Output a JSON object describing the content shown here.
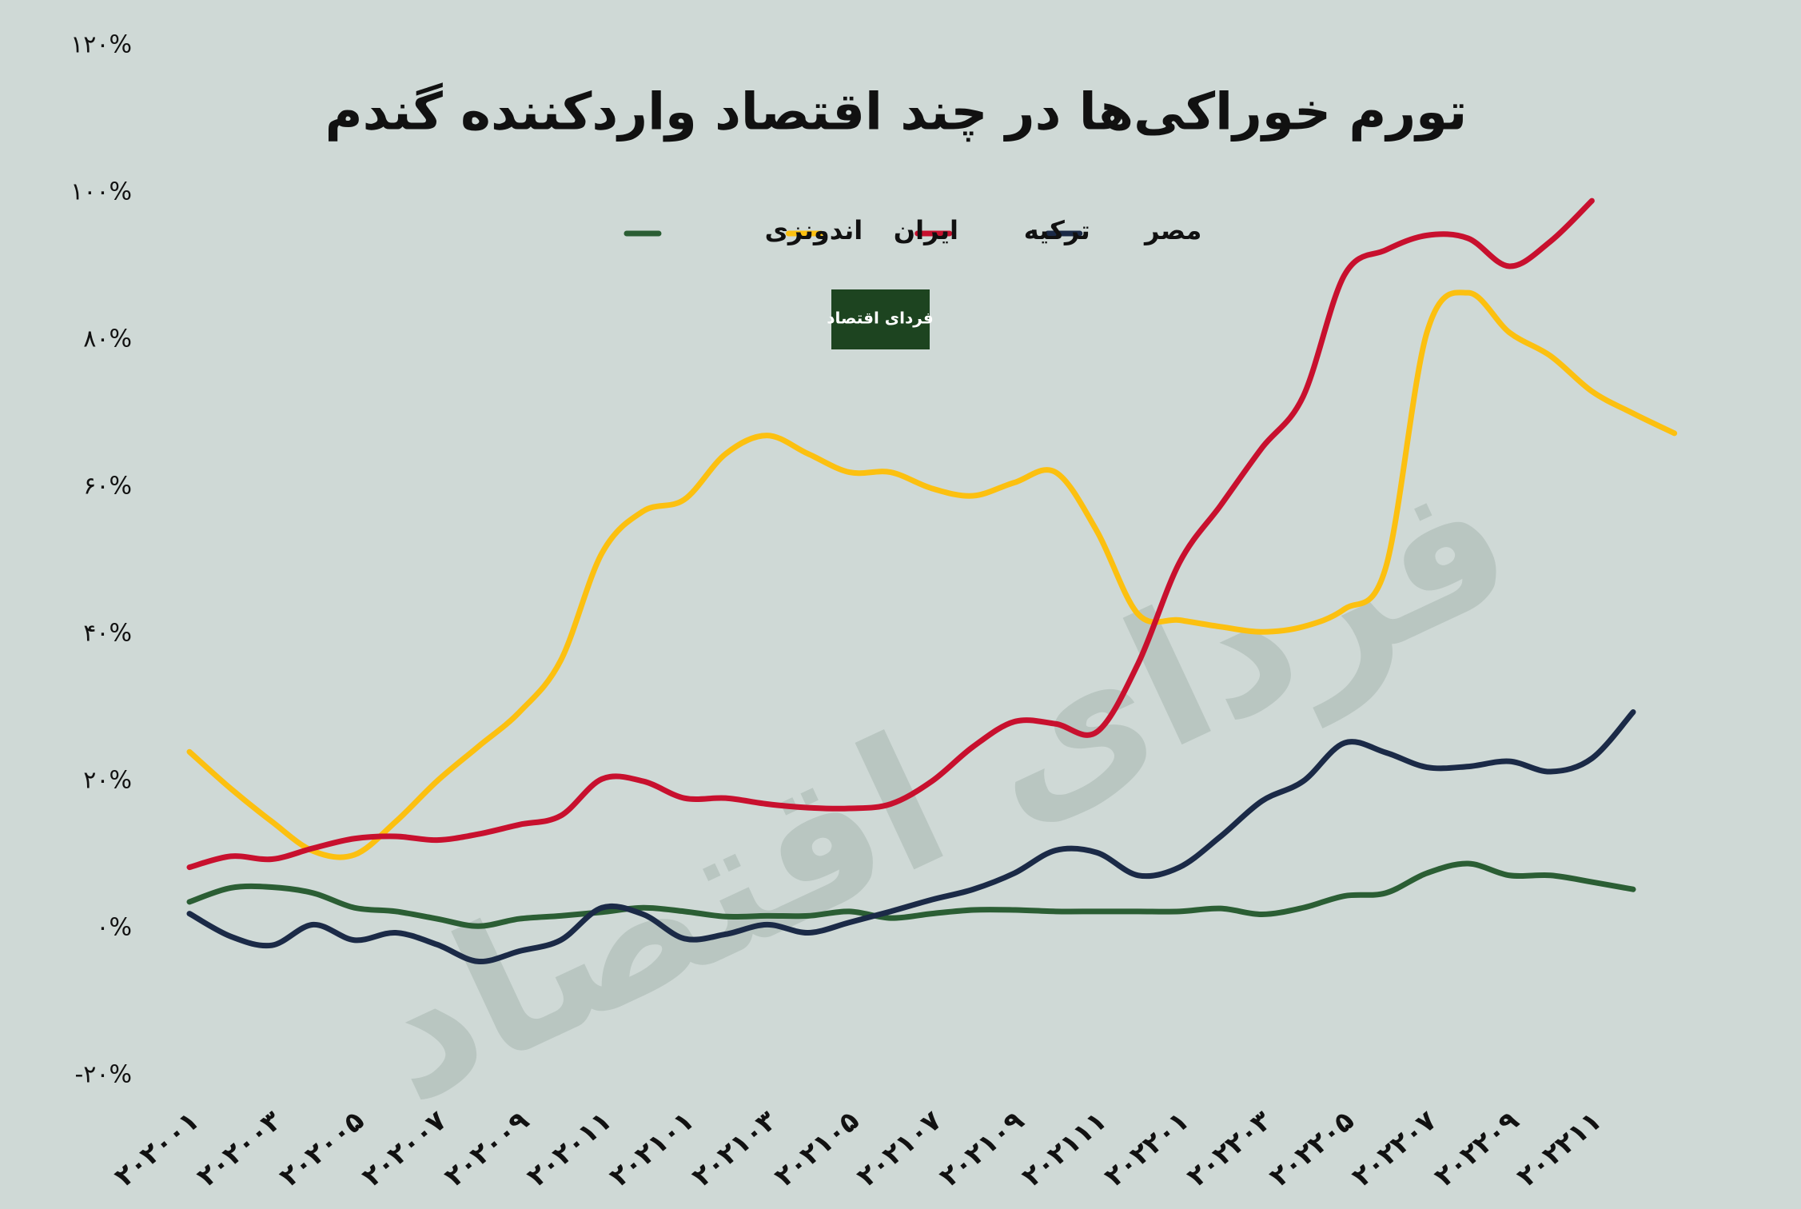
{
  "chart_data": {
    "type": "line",
    "title": "تورم خوراکی‌ها در چند اقتصاد واردکننده گندم",
    "logo_text": "فردای اقتصاد",
    "categories": [
      "۲۰۲۰۰۱",
      null,
      "۲۰۲۰۰۳",
      null,
      "۲۰۲۰۰۵",
      null,
      "۲۰۲۰۰۷",
      null,
      "۲۰۲۰۰۹",
      null,
      "۲۰۲۰۱۱",
      null,
      "۲۰۲۱۰۱",
      null,
      "۲۰۲۱۰۳",
      null,
      "۲۰۲۱۰۵",
      null,
      "۲۰۲۱۰۷",
      null,
      "۲۰۲۱۰۹",
      null,
      "۲۰۲۱۱۱",
      null,
      "۲۰۲۲۰۱",
      null,
      "۲۰۲۲۰۳",
      null,
      "۲۰۲۲۰۵",
      null,
      "۲۰۲۲۰۷",
      null,
      "۲۰۲۲۰۹",
      null,
      "۲۰۲۲۱۱",
      null,
      null
    ],
    "series": [
      {
        "name": "مصر",
        "color": "#1b2a47",
        "values": [
          2,
          -1.1,
          -2.3,
          0.5,
          -1.6,
          -0.6,
          -2.2,
          -4.5,
          -3.1,
          -1.6,
          2.8,
          1.9,
          -1.4,
          -0.8,
          0.5,
          -0.6,
          0.8,
          2.3,
          3.9,
          5.3,
          7.5,
          10.6,
          10.3,
          7.2,
          8.3,
          12.5,
          17.3,
          20,
          25.2,
          23.9,
          21.9,
          22,
          22.7,
          21.3,
          23.1,
          29.4,
          null
        ]
      },
      {
        "name": "ترکیه",
        "color": "#c8102e",
        "values": [
          8.3,
          9.8,
          9.4,
          10.9,
          12.2,
          12.5,
          12,
          12.8,
          14.1,
          15.3,
          20.3,
          20,
          17.7,
          17.7,
          16.9,
          16.4,
          16.3,
          16.9,
          20,
          24.7,
          28.1,
          27.8,
          26.7,
          36,
          49.7,
          57.5,
          65.3,
          72.3,
          88.8,
          92.2,
          94.2,
          93.8,
          90,
          93.4,
          98.9,
          null,
          null
        ]
      },
      {
        "name": "ایران",
        "color": "#fcc010",
        "values": [
          24,
          19,
          14.5,
          10.5,
          10,
          14.5,
          20,
          24.7,
          29.4,
          36.4,
          51,
          56.7,
          58.3,
          64.5,
          67,
          64.5,
          62,
          62,
          59.8,
          58.8,
          60.6,
          62,
          54,
          42.7,
          41.9,
          41,
          40.3,
          41,
          43.4,
          49,
          81,
          86.4,
          81,
          77.8,
          73,
          70,
          67.3
        ]
      },
      {
        "name": "اندونزی",
        "color": "#2b5e34",
        "values": [
          3.6,
          5.5,
          5.6,
          4.8,
          2.8,
          2.3,
          1.3,
          0.3,
          1.3,
          1.7,
          2.2,
          2.8,
          2.3,
          1.6,
          1.7,
          1.7,
          2.3,
          1.4,
          2,
          2.5,
          2.5,
          2.3,
          2.3,
          2.3,
          2.3,
          2.7,
          1.9,
          2.8,
          4.4,
          4.8,
          7.5,
          8.8,
          7.2,
          7.2,
          6.3,
          5.3,
          null
        ]
      }
    ],
    "ylim": [
      -20,
      120
    ],
    "yticks": [
      {
        "value": -20,
        "label": "-۲۰%"
      },
      {
        "value": 0,
        "label": "۰%"
      },
      {
        "value": 20,
        "label": "۲۰%"
      },
      {
        "value": 40,
        "label": "۴۰%"
      },
      {
        "value": 60,
        "label": "۶۰%"
      },
      {
        "value": 80,
        "label": "۸۰%"
      },
      {
        "value": 100,
        "label": "۱۰۰%"
      },
      {
        "value": 120,
        "label": "۱۲۰%"
      }
    ],
    "grid": false
  }
}
